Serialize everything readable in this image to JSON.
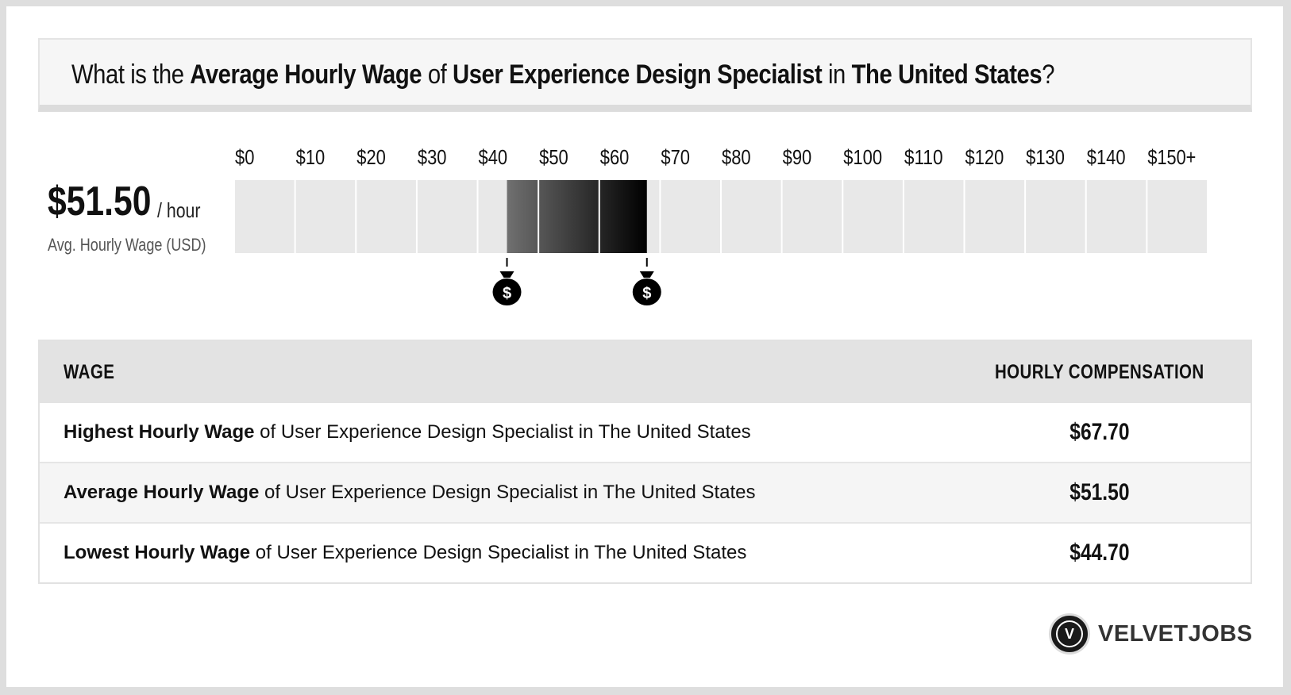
{
  "question": {
    "prefix": "What is the ",
    "metric": "Average Hourly Wage",
    "of": " of ",
    "job": "User Experience Design Specialist",
    "in": " in ",
    "location": "The United States",
    "suffix": "?"
  },
  "summary": {
    "value": "$51.50",
    "unit": "/ hour",
    "caption": "Avg. Hourly Wage (USD)"
  },
  "chart_data": {
    "type": "range-bar",
    "tick_labels": [
      "$0",
      "$10",
      "$20",
      "$30",
      "$40",
      "$50",
      "$60",
      "$70",
      "$80",
      "$90",
      "$100",
      "$110",
      "$120",
      "$130",
      "$140",
      "$150+"
    ],
    "ticks": [
      0,
      10,
      20,
      30,
      40,
      50,
      60,
      70,
      80,
      90,
      100,
      110,
      120,
      130,
      140,
      150
    ],
    "range_low": 44.7,
    "range_high": 67.7,
    "average": 51.5,
    "markers": [
      44.7,
      67.7
    ],
    "colors": {
      "empty": "#e8e8e8",
      "fill_start": "#707070",
      "fill_end": "#000000",
      "marker": "#000000"
    }
  },
  "table": {
    "headers": {
      "left": "WAGE",
      "right": "HOURLY COMPENSATION"
    },
    "rows": [
      {
        "bold": "Highest Hourly Wage",
        "rest": " of User Experience Design Specialist in The United States",
        "value": "$67.70"
      },
      {
        "bold": "Average Hourly Wage",
        "rest": " of User Experience Design Specialist in The United States",
        "value": "$51.50"
      },
      {
        "bold": "Lowest Hourly Wage",
        "rest": " of User Experience Design Specialist in The United States",
        "value": "$44.70"
      }
    ]
  },
  "brand": {
    "logo_letter": "V",
    "name": "VELVETJOBS"
  }
}
